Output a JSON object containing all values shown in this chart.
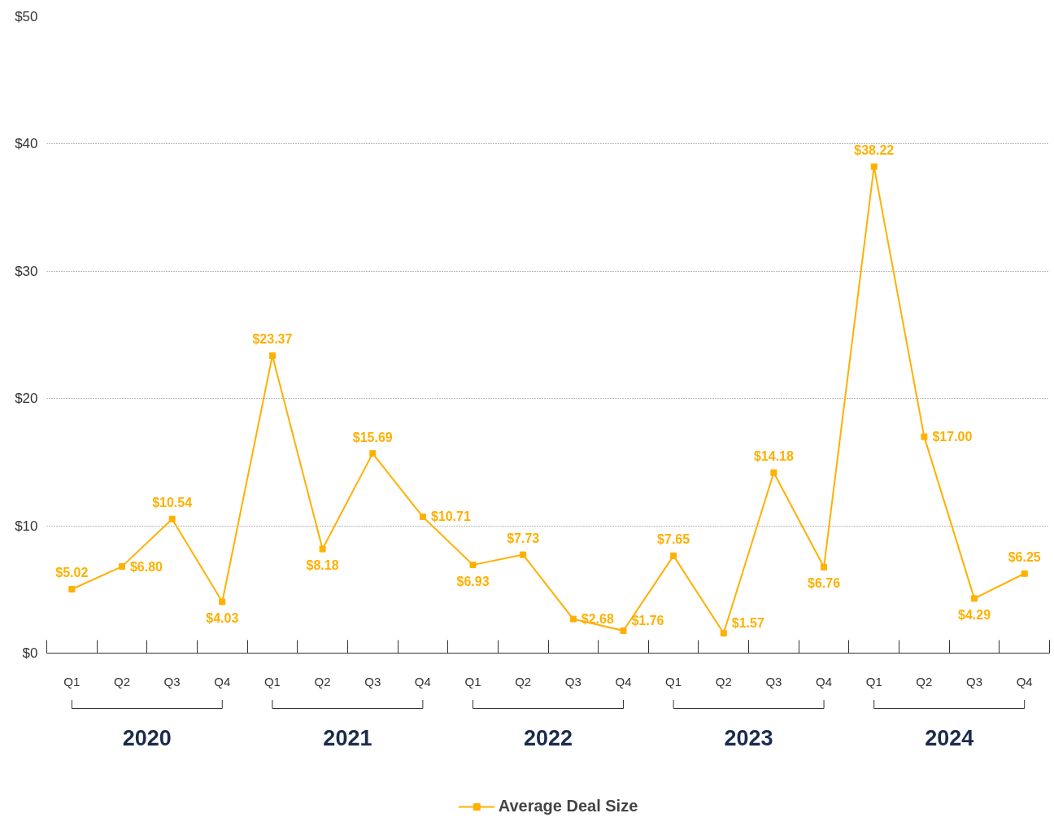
{
  "chart_data": {
    "type": "line",
    "categories": [
      "Q1",
      "Q2",
      "Q3",
      "Q4",
      "Q1",
      "Q2",
      "Q3",
      "Q4",
      "Q1",
      "Q2",
      "Q3",
      "Q4",
      "Q1",
      "Q2",
      "Q3",
      "Q4",
      "Q1",
      "Q2",
      "Q3",
      "Q4"
    ],
    "series": [
      {
        "name": "Average Deal Size",
        "color": "#ffb000",
        "values": [
          5.02,
          6.8,
          10.54,
          4.03,
          23.37,
          8.18,
          15.69,
          10.71,
          6.93,
          7.73,
          2.68,
          1.76,
          7.65,
          1.57,
          14.18,
          6.76,
          38.22,
          17.0,
          4.29,
          6.25
        ]
      }
    ],
    "value_labels": [
      "$5.02",
      "$6.80",
      "$10.54",
      "$4.03",
      "$23.37",
      "$8.18",
      "$15.69",
      "$10.71",
      "$6.93",
      "$7.73",
      "$2.68",
      "$1.76",
      "$7.65",
      "$1.57",
      "$14.18",
      "$6.76",
      "$38.22",
      "$17.00",
      "$4.29",
      "$6.25"
    ],
    "ylim": [
      0,
      50
    ],
    "yticks": [
      {
        "value": 0,
        "label": "$0"
      },
      {
        "value": 10,
        "label": "$10"
      },
      {
        "value": 20,
        "label": "$20"
      },
      {
        "value": 30,
        "label": "$30"
      },
      {
        "value": 40,
        "label": "$40"
      },
      {
        "value": 50,
        "label": "$50"
      }
    ],
    "grid": "y",
    "marker": "square",
    "line_style": "solid",
    "legend": "bottom",
    "annotations": [
      "2020",
      "2021",
      "2022",
      "2023",
      "2024"
    ]
  }
}
